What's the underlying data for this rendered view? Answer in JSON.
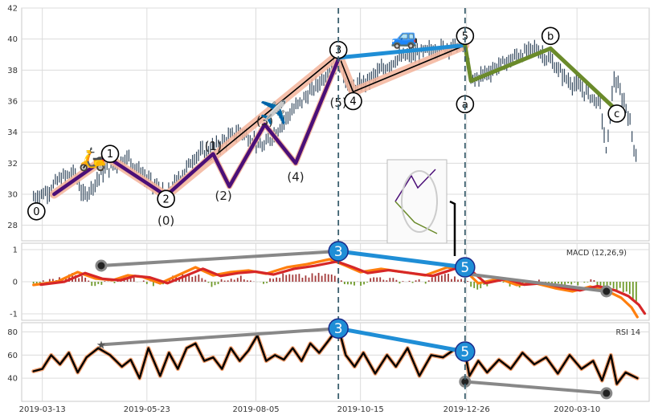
{
  "chart_data": [
    {
      "panel": "price",
      "type": "candlestick",
      "x_ticks": [
        "2019-03-13",
        "2019-05-23",
        "2019-08-05",
        "2019-10-15",
        "2019-12-26",
        "2020-03-10"
      ],
      "x_tick_days": [
        0,
        71,
        145,
        216,
        288,
        363
      ],
      "ylim": [
        27,
        42
      ],
      "y_ticks": [
        28,
        30,
        32,
        34,
        36,
        38,
        40,
        42
      ],
      "grid": true,
      "vlines_days": [
        201,
        287
      ],
      "price_path": [
        [
          -6,
          29.8
        ],
        [
          4,
          30.2
        ],
        [
          12,
          31.0
        ],
        [
          22,
          31.4
        ],
        [
          28,
          29.8
        ],
        [
          42,
          31.5
        ],
        [
          58,
          32.4
        ],
        [
          70,
          31.0
        ],
        [
          84,
          29.9
        ],
        [
          92,
          30.9
        ],
        [
          104,
          32.5
        ],
        [
          120,
          33.2
        ],
        [
          134,
          34.1
        ],
        [
          150,
          33.0
        ],
        [
          168,
          35.2
        ],
        [
          186,
          37.0
        ],
        [
          201,
          38.6
        ],
        [
          209,
          36.7
        ],
        [
          222,
          37.4
        ],
        [
          240,
          38.7
        ],
        [
          265,
          39.3
        ],
        [
          287,
          39.7
        ],
        [
          291,
          37.3
        ],
        [
          305,
          38.0
        ],
        [
          322,
          38.9
        ],
        [
          335,
          39.4
        ],
        [
          345,
          38.6
        ],
        [
          356,
          37.4
        ],
        [
          370,
          36.5
        ],
        [
          379,
          35.8
        ],
        [
          383,
          32.5
        ],
        [
          388,
          37.5
        ],
        [
          397,
          35.5
        ],
        [
          404,
          32.0
        ]
      ],
      "impulse_points": [
        [
          8,
          30.0
        ],
        [
          44,
          32.4
        ],
        [
          84,
          29.9
        ],
        [
          116,
          32.6
        ],
        [
          127,
          30.5
        ],
        [
          151,
          34.5
        ],
        [
          172,
          32.0
        ],
        [
          201,
          38.7
        ]
      ],
      "overall_wave_points": [
        [
          8,
          30.0
        ],
        [
          44,
          32.4
        ],
        [
          84,
          29.9
        ],
        [
          201,
          39.0
        ],
        [
          211,
          36.6
        ],
        [
          287,
          39.6
        ]
      ],
      "correction_points": [
        [
          287,
          39.6
        ],
        [
          291,
          37.3
        ],
        [
          345,
          39.4
        ],
        [
          390,
          35.4
        ]
      ],
      "wave_labels": [
        {
          "text": "0",
          "x": -4,
          "y": 28.9,
          "circled": true
        },
        {
          "text": "1",
          "x": 46,
          "y": 32.6,
          "circled": true
        },
        {
          "text": "2",
          "x": 84,
          "y": 29.7,
          "circled": true
        },
        {
          "text": "(0)",
          "x": 84,
          "y": 28.3,
          "circled": false
        },
        {
          "text": "(1)",
          "x": 116,
          "y": 33.1,
          "circled": false
        },
        {
          "text": "(2)",
          "x": 123,
          "y": 29.9,
          "circled": false
        },
        {
          "text": "(3)",
          "x": 151,
          "y": 34.7,
          "circled": false
        },
        {
          "text": "(4)",
          "x": 172,
          "y": 31.1,
          "circled": false
        },
        {
          "text": "3",
          "x": 201,
          "y": 39.3,
          "circled": true
        },
        {
          "text": "(5)",
          "x": 201,
          "y": 35.9,
          "circled": false
        },
        {
          "text": "4",
          "x": 211,
          "y": 36.0,
          "circled": true
        },
        {
          "text": "5",
          "x": 287,
          "y": 40.2,
          "circled": true
        },
        {
          "text": "a",
          "x": 287,
          "y": 35.8,
          "circled": true
        },
        {
          "text": "b",
          "x": 345,
          "y": 40.2,
          "circled": true
        },
        {
          "text": "c",
          "x": 390,
          "y": 35.2,
          "circled": true
        }
      ],
      "emojis": [
        {
          "glyph": "🛵",
          "x": 34,
          "y": 32.3
        },
        {
          "glyph": "✈️",
          "x": 157,
          "y": 35.3
        },
        {
          "glyph": "🚙",
          "x": 246,
          "y": 40.2
        }
      ]
    },
    {
      "panel": "macd",
      "type": "line",
      "label": "MACD (12,26,9)",
      "ylim": [
        -1.2,
        1.2
      ],
      "y_ticks": [
        -1,
        0,
        1
      ],
      "macd_path": [
        [
          -6,
          -0.1
        ],
        [
          10,
          0.0
        ],
        [
          24,
          0.3
        ],
        [
          36,
          0.1
        ],
        [
          48,
          0.05
        ],
        [
          58,
          0.2
        ],
        [
          68,
          0.15
        ],
        [
          80,
          -0.05
        ],
        [
          92,
          0.2
        ],
        [
          104,
          0.45
        ],
        [
          116,
          0.2
        ],
        [
          128,
          0.3
        ],
        [
          140,
          0.35
        ],
        [
          152,
          0.25
        ],
        [
          166,
          0.45
        ],
        [
          180,
          0.55
        ],
        [
          195,
          0.7
        ],
        [
          206,
          0.5
        ],
        [
          216,
          0.3
        ],
        [
          230,
          0.4
        ],
        [
          245,
          0.3
        ],
        [
          260,
          0.2
        ],
        [
          275,
          0.45
        ],
        [
          287,
          0.35
        ],
        [
          296,
          -0.05
        ],
        [
          310,
          0.1
        ],
        [
          322,
          -0.1
        ],
        [
          335,
          -0.05
        ],
        [
          348,
          -0.2
        ],
        [
          360,
          -0.3
        ],
        [
          372,
          -0.15
        ],
        [
          384,
          -0.3
        ],
        [
          393,
          -0.5
        ],
        [
          400,
          -0.8
        ],
        [
          404,
          -1.1
        ]
      ],
      "divergence_top": [
        [
          40,
          0.5
        ],
        [
          201,
          0.95
        ],
        [
          287,
          0.45
        ]
      ],
      "divergence_bottom": [
        [
          287,
          0.25
        ],
        [
          383,
          -0.3
        ]
      ]
    },
    {
      "panel": "rsi",
      "type": "line",
      "label": "RSI 14",
      "ylim": [
        20,
        88
      ],
      "y_ticks": [
        40,
        60,
        80
      ],
      "rsi_path": [
        [
          -6,
          46
        ],
        [
          0,
          48
        ],
        [
          6,
          60
        ],
        [
          12,
          52
        ],
        [
          18,
          62
        ],
        [
          24,
          45
        ],
        [
          30,
          58
        ],
        [
          38,
          66
        ],
        [
          46,
          60
        ],
        [
          54,
          50
        ],
        [
          60,
          56
        ],
        [
          66,
          40
        ],
        [
          72,
          66
        ],
        [
          80,
          42
        ],
        [
          86,
          62
        ],
        [
          92,
          48
        ],
        [
          98,
          66
        ],
        [
          104,
          70
        ],
        [
          110,
          55
        ],
        [
          116,
          58
        ],
        [
          122,
          48
        ],
        [
          128,
          66
        ],
        [
          134,
          55
        ],
        [
          140,
          64
        ],
        [
          146,
          77
        ],
        [
          152,
          55
        ],
        [
          158,
          60
        ],
        [
          164,
          56
        ],
        [
          170,
          66
        ],
        [
          176,
          55
        ],
        [
          182,
          70
        ],
        [
          188,
          62
        ],
        [
          194,
          72
        ],
        [
          201,
          84
        ],
        [
          206,
          60
        ],
        [
          212,
          50
        ],
        [
          218,
          62
        ],
        [
          226,
          44
        ],
        [
          234,
          60
        ],
        [
          240,
          50
        ],
        [
          248,
          66
        ],
        [
          256,
          42
        ],
        [
          264,
          60
        ],
        [
          272,
          58
        ],
        [
          280,
          65
        ],
        [
          287,
          62
        ],
        [
          290,
          42
        ],
        [
          296,
          55
        ],
        [
          302,
          45
        ],
        [
          310,
          56
        ],
        [
          318,
          48
        ],
        [
          326,
          62
        ],
        [
          334,
          52
        ],
        [
          342,
          58
        ],
        [
          350,
          44
        ],
        [
          358,
          60
        ],
        [
          366,
          48
        ],
        [
          374,
          55
        ],
        [
          380,
          38
        ],
        [
          386,
          60
        ],
        [
          390,
          35
        ],
        [
          396,
          45
        ],
        [
          404,
          40
        ]
      ],
      "divergence_top": [
        [
          40,
          69
        ],
        [
          201,
          83
        ],
        [
          287,
          63
        ]
      ],
      "divergence_bottom": [
        [
          287,
          37
        ],
        [
          383,
          27
        ]
      ]
    }
  ],
  "labels": {
    "macd": "MACD (12,26,9)",
    "rsi": "RSI 14",
    "callouts": [
      "3",
      "5"
    ]
  },
  "colors": {
    "impulse": "#4b0f78",
    "impulse_outline": "#f4b8a0",
    "wave_fill": "#f3b49b",
    "blue_trend": "#1f8ed6",
    "correction": "#6a8a2a",
    "divergence_grey": "#888888",
    "macd_line": "#ff7f0e",
    "signal_line": "#d62728",
    "hist_pos": "#a33a3a",
    "hist_neg": "#6f9a2a",
    "rsi_line": "#000000",
    "rsi_outline": "#f2a06f",
    "candles": "#34495e",
    "vline": "#3b5f6e"
  }
}
